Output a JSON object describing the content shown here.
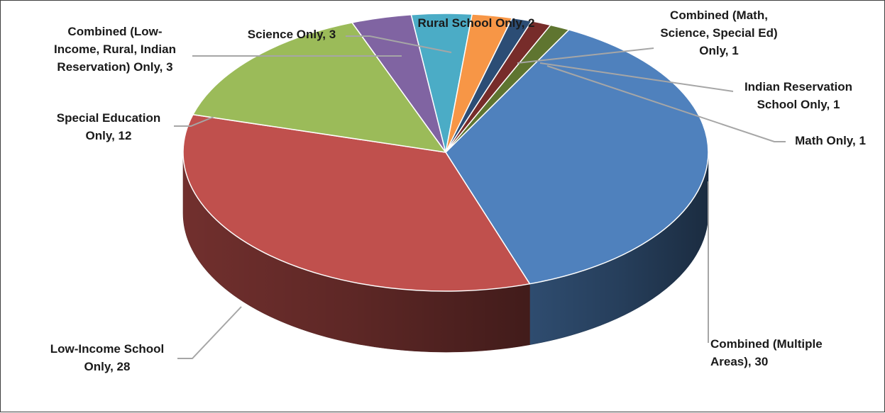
{
  "chart_data": {
    "type": "pie",
    "style": "3d",
    "start_angle_deg": -62,
    "direction": "clockwise",
    "slices": [
      {
        "label": "Combined (Multiple Areas)",
        "value": 30,
        "display": "Combined (Multiple|Areas), 30",
        "color": "#4f81bd"
      },
      {
        "label": "Low-Income School Only",
        "value": 28,
        "display": "Low-Income School|Only, 28",
        "color": "#c0504d"
      },
      {
        "label": "Special Education Only",
        "value": 12,
        "display": "Special Education|Only, 12",
        "color": "#9bbb59"
      },
      {
        "label": "Combined (Low-Income, Rural, Indian Reservation) Only",
        "value": 3,
        "display": "Combined (Low-|Income, Rural, Indian|Reservation) Only, 3",
        "color": "#8064a2"
      },
      {
        "label": "Science Only",
        "value": 3,
        "display": "Science Only, 3",
        "color": "#4bacc6"
      },
      {
        "label": "Rural School Only",
        "value": 2,
        "display": "Rural School Only, 2",
        "color": "#f79646"
      },
      {
        "label": "Combined (Math, Science, Special Ed) Only",
        "value": 1,
        "display": "Combined (Math,|Science, Special Ed)|Only, 1",
        "color": "#2c4d75"
      },
      {
        "label": "Indian Reservation School Only",
        "value": 1,
        "display": "Indian Reservation|School Only, 1",
        "color": "#772c2a"
      },
      {
        "label": "Math Only",
        "value": 1,
        "display": "Math Only, 1",
        "color": "#5f7530"
      }
    ],
    "legend": "none",
    "data_labels": "outside-with-leader-lines"
  }
}
